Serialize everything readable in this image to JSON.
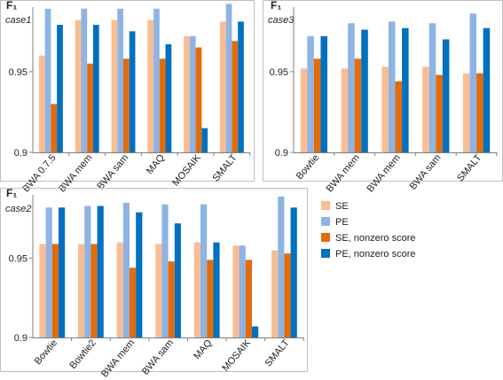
{
  "series_colors": [
    "#F9BD93",
    "#8EB4E3",
    "#E36C0A",
    "#0070C0"
  ],
  "legend": {
    "items": [
      "SE",
      "PE",
      "SE, nonzero score",
      "PE, nonzero score"
    ]
  },
  "chart_data": [
    {
      "type": "bar",
      "title": "case1",
      "ylabel": "F₁",
      "ylim": [
        0.9,
        0.99
      ],
      "yticks": [
        0.9,
        0.95
      ],
      "ytick_labels": [
        "0.9",
        "0.95"
      ],
      "grid": false,
      "categories": [
        "BWA 0.7.5",
        "BWA mem",
        "BWA sam",
        "MAQ",
        "MOSAIK",
        "SMALT"
      ],
      "series": [
        {
          "name": "SE",
          "values": [
            0.96,
            0.982,
            0.982,
            0.982,
            0.972,
            0.981
          ]
        },
        {
          "name": "PE",
          "values": [
            0.989,
            0.989,
            0.989,
            0.989,
            0.972,
            0.992
          ]
        },
        {
          "name": "SE, nonzero score",
          "values": [
            0.93,
            0.955,
            0.958,
            0.958,
            0.965,
            0.969
          ]
        },
        {
          "name": "PE, nonzero score",
          "values": [
            0.979,
            0.979,
            0.975,
            0.967,
            0.915,
            0.981
          ]
        }
      ]
    },
    {
      "type": "bar",
      "title": "case3",
      "ylabel": "F₁",
      "ylim": [
        0.9,
        0.99
      ],
      "yticks": [
        0.9,
        0.95
      ],
      "ytick_labels": [
        "0.9",
        "0.95"
      ],
      "grid": false,
      "categories": [
        "Bowtie",
        "BWA mem",
        "BWA mem",
        "BWA sam",
        "SMALT"
      ],
      "series": [
        {
          "name": "SE",
          "values": [
            0.952,
            0.952,
            0.953,
            0.953,
            0.949
          ]
        },
        {
          "name": "PE",
          "values": [
            0.972,
            0.98,
            0.981,
            0.98,
            0.986
          ]
        },
        {
          "name": "SE, nonzero score",
          "values": [
            0.958,
            0.958,
            0.944,
            0.948,
            0.949
          ]
        },
        {
          "name": "PE, nonzero score",
          "values": [
            0.972,
            0.976,
            0.977,
            0.97,
            0.977
          ]
        }
      ]
    },
    {
      "type": "bar",
      "title": "case2",
      "ylabel": "F₁",
      "ylim": [
        0.9,
        0.99
      ],
      "yticks": [
        0.9,
        0.95
      ],
      "ytick_labels": [
        "0.9",
        "0.95"
      ],
      "grid": false,
      "categories": [
        "Bowtie",
        "Bowtie2",
        "BWA mem",
        "BWA sam",
        "MAQ",
        "MOSAIK",
        "SMALT"
      ],
      "series": [
        {
          "name": "SE",
          "values": [
            0.959,
            0.959,
            0.96,
            0.959,
            0.96,
            0.958,
            0.955
          ]
        },
        {
          "name": "PE",
          "values": [
            0.982,
            0.983,
            0.985,
            0.984,
            0.984,
            0.958,
            0.989
          ]
        },
        {
          "name": "SE, nonzero score",
          "values": [
            0.959,
            0.959,
            0.944,
            0.948,
            0.949,
            0.949,
            0.953
          ]
        },
        {
          "name": "PE, nonzero score",
          "values": [
            0.982,
            0.983,
            0.979,
            0.972,
            0.96,
            0.907,
            0.982
          ]
        }
      ]
    }
  ]
}
